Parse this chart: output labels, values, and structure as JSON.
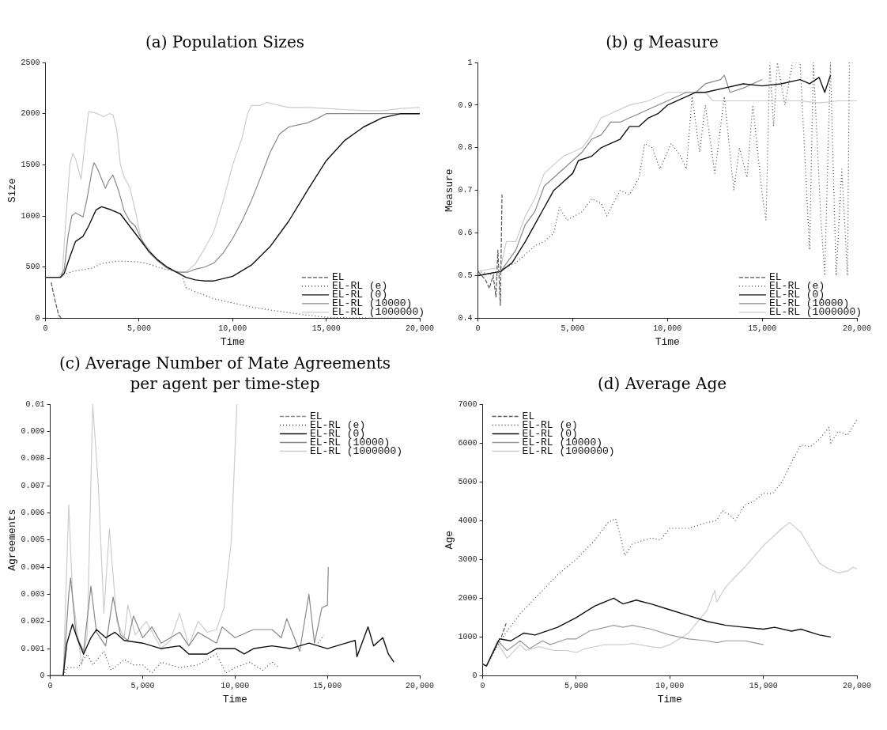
{
  "chart_data": [
    {
      "type": "line",
      "title": "(a) Population Sizes",
      "xlabel": "Time",
      "ylabel": "Size",
      "xlim": [
        0,
        20000
      ],
      "ylim": [
        0,
        2500
      ],
      "xticks": [
        {
          "value": 0,
          "label": "0"
        },
        {
          "value": 5000,
          "label": "5,000"
        },
        {
          "value": 10000,
          "label": "10,000"
        },
        {
          "value": 15000,
          "label": "15,000"
        },
        {
          "value": 20000,
          "label": "20,000"
        }
      ],
      "yticks": [
        0,
        500,
        1000,
        1500,
        2000,
        2500
      ],
      "grid": false,
      "legend": "bottom right",
      "series": [
        {
          "name": "EL",
          "color": "#555555",
          "line_style": "dashed",
          "x": [
            300,
            500,
            700,
            850
          ],
          "values": [
            350,
            180,
            30,
            0
          ]
        },
        {
          "name": "EL-RL (e)",
          "color": "#444444",
          "line_style": "dotted",
          "x": [
            0,
            800,
            1000,
            1500,
            2000,
            2500,
            3000,
            3500,
            4000,
            4500,
            5000,
            5500,
            6000,
            6500,
            7000,
            7300,
            7500,
            8000,
            9000,
            10000,
            11000,
            12000,
            13000,
            14000,
            15000,
            16000,
            18000,
            20000
          ],
          "values": [
            400,
            400,
            430,
            460,
            475,
            490,
            535,
            550,
            560,
            555,
            550,
            530,
            500,
            475,
            460,
            420,
            300,
            260,
            190,
            150,
            110,
            80,
            55,
            30,
            10,
            5,
            2,
            0
          ]
        },
        {
          "name": "EL-RL (0)",
          "color": "#111111",
          "line_style": "solid",
          "x": [
            0,
            800,
            1000,
            1300,
            1600,
            2000,
            2300,
            2700,
            3000,
            3500,
            4000,
            4500,
            5000,
            5500,
            6000,
            6500,
            7000,
            7500,
            8000,
            8500,
            9000,
            10000,
            11000,
            12000,
            13000,
            14000,
            15000,
            16000,
            17000,
            18000,
            19000,
            20000
          ],
          "values": [
            400,
            400,
            440,
            600,
            750,
            800,
            900,
            1060,
            1090,
            1060,
            1020,
            900,
            780,
            660,
            570,
            500,
            450,
            400,
            375,
            365,
            365,
            410,
            520,
            700,
            950,
            1250,
            1540,
            1740,
            1870,
            1960,
            2000,
            2000
          ]
        },
        {
          "name": "EL-RL (10000)",
          "color": "#888888",
          "line_style": "solid",
          "x": [
            0,
            800,
            1000,
            1200,
            1400,
            1600,
            1800,
            2000,
            2200,
            2500,
            2600,
            2800,
            3200,
            3400,
            3600,
            3900,
            4200,
            4500,
            4800,
            5100,
            5500,
            6000,
            6500,
            7000,
            7600,
            8000,
            8500,
            9000,
            9500,
            10000,
            10500,
            11000,
            11500,
            12000,
            12500,
            13000,
            13500,
            14000,
            14500,
            15000,
            20000
          ],
          "values": [
            400,
            400,
            480,
            800,
            1000,
            1030,
            1010,
            990,
            1150,
            1460,
            1520,
            1450,
            1270,
            1350,
            1400,
            1250,
            1050,
            950,
            900,
            780,
            650,
            560,
            490,
            450,
            450,
            480,
            500,
            540,
            640,
            780,
            950,
            1150,
            1380,
            1620,
            1800,
            1870,
            1890,
            1910,
            1950,
            2000,
            2000
          ]
        },
        {
          "name": "EL-RL (1000000)",
          "color": "#cccccc",
          "line_style": "solid",
          "x": [
            0,
            700,
            900,
            1100,
            1300,
            1450,
            1600,
            1900,
            2100,
            2300,
            2600,
            2900,
            3100,
            3400,
            3600,
            3800,
            4000,
            4200,
            4500,
            4800,
            5100,
            5500,
            6000,
            6500,
            7000,
            7500,
            8000,
            8500,
            9000,
            9500,
            10000,
            10500,
            10800,
            11000,
            11500,
            11800,
            12500,
            13000,
            14000,
            15000,
            16000,
            17000,
            18000,
            19000,
            20000
          ],
          "values": [
            400,
            400,
            450,
            1000,
            1500,
            1610,
            1560,
            1360,
            1700,
            2020,
            2010,
            1990,
            1970,
            2000,
            1990,
            1850,
            1500,
            1380,
            1280,
            1050,
            780,
            680,
            560,
            490,
            450,
            450,
            530,
            680,
            850,
            1150,
            1500,
            1760,
            2000,
            2080,
            2080,
            2110,
            2080,
            2060,
            2060,
            2050,
            2040,
            2030,
            2030,
            2050,
            2060
          ]
        }
      ]
    },
    {
      "type": "line",
      "title": "(b) g Measure",
      "xlabel": "Time",
      "ylabel": "Measure",
      "xlim": [
        0,
        20000
      ],
      "ylim": [
        0.4,
        1
      ],
      "xticks": [
        {
          "value": 0,
          "label": "0"
        },
        {
          "value": 5000,
          "label": "5,000"
        },
        {
          "value": 10000,
          "label": "10,000"
        },
        {
          "value": 15000,
          "label": "15,000"
        },
        {
          "value": 20000,
          "label": "20,000"
        }
      ],
      "yticks": [
        0.4,
        0.5,
        0.6,
        0.7,
        0.8,
        0.9,
        1
      ],
      "grid": false,
      "legend": "bottom right",
      "series": [
        {
          "name": "EL",
          "color": "#555555",
          "line_style": "dashed",
          "x": [
            0,
            400,
            600,
            800,
            950,
            1050,
            1180,
            1270
          ],
          "values": [
            0.51,
            0.49,
            0.47,
            0.5,
            0.45,
            0.56,
            0.43,
            0.69
          ]
        },
        {
          "name": "EL-RL (e)",
          "color": "#444444",
          "line_style": "dotted",
          "x": [
            0,
            1000,
            1500,
            2000,
            2500,
            3000,
            3500,
            4000,
            4300,
            4700,
            5500,
            6000,
            6500,
            6800,
            7500,
            8000,
            8500,
            8800,
            9200,
            9600,
            10200,
            10700,
            11000,
            11300,
            11700,
            12000,
            12500,
            13000,
            13500,
            13800,
            14200,
            14500,
            15000,
            15200,
            15400,
            15600,
            15800,
            16200,
            16600,
            17000,
            17500,
            17700,
            18100,
            18300,
            18600,
            18900,
            19200,
            19500,
            19600,
            19900
          ],
          "values": [
            0.51,
            0.5,
            0.52,
            0.53,
            0.55,
            0.57,
            0.58,
            0.6,
            0.66,
            0.63,
            0.65,
            0.68,
            0.67,
            0.64,
            0.7,
            0.69,
            0.73,
            0.81,
            0.8,
            0.75,
            0.81,
            0.78,
            0.75,
            0.92,
            0.79,
            0.9,
            0.74,
            0.92,
            0.7,
            0.8,
            0.73,
            0.9,
            0.69,
            0.63,
            1,
            0.85,
            1,
            0.9,
            1,
            1,
            0.56,
            1,
            0.63,
            0.5,
            1,
            0.5,
            0.75,
            0.5,
            1,
            1
          ]
        },
        {
          "name": "EL-RL (0)",
          "color": "#111111",
          "line_style": "solid",
          "x": [
            0,
            1200,
            1800,
            2500,
            3000,
            3500,
            4000,
            4500,
            5000,
            5300,
            6000,
            6500,
            7000,
            7500,
            8000,
            8500,
            9000,
            9500,
            10000,
            11000,
            11500,
            12000,
            13000,
            14000,
            15000,
            16000,
            17000,
            17500,
            18000,
            18300,
            18600
          ],
          "values": [
            0.5,
            0.51,
            0.53,
            0.58,
            0.62,
            0.66,
            0.7,
            0.72,
            0.74,
            0.77,
            0.78,
            0.8,
            0.81,
            0.82,
            0.85,
            0.85,
            0.87,
            0.88,
            0.9,
            0.92,
            0.93,
            0.93,
            0.94,
            0.95,
            0.945,
            0.95,
            0.96,
            0.95,
            0.965,
            0.93,
            0.97
          ]
        },
        {
          "name": "EL-RL (10000)",
          "color": "#888888",
          "line_style": "solid",
          "x": [
            0,
            1200,
            2000,
            2500,
            3000,
            3500,
            4000,
            4500,
            5000,
            5500,
            6000,
            6500,
            7000,
            7500,
            8000,
            8500,
            9000,
            10000,
            11000,
            11500,
            12000,
            12800,
            13000,
            13300,
            14000,
            14500,
            15000
          ],
          "values": [
            0.5,
            0.51,
            0.56,
            0.62,
            0.65,
            0.71,
            0.73,
            0.75,
            0.77,
            0.79,
            0.82,
            0.83,
            0.86,
            0.86,
            0.87,
            0.88,
            0.89,
            0.91,
            0.93,
            0.93,
            0.95,
            0.96,
            0.97,
            0.93,
            0.94,
            0.95,
            0.96
          ]
        },
        {
          "name": "EL-RL (1000000)",
          "color": "#cccccc",
          "line_style": "solid",
          "x": [
            0,
            1200,
            1500,
            2000,
            2500,
            3000,
            3500,
            4000,
            4500,
            5000,
            5500,
            6000,
            6500,
            7000,
            7500,
            8000,
            9000,
            10000,
            11000,
            12000,
            12400,
            13000,
            14000,
            15000,
            16000,
            17000,
            18000,
            19000,
            20000
          ],
          "values": [
            0.51,
            0.52,
            0.58,
            0.58,
            0.64,
            0.68,
            0.74,
            0.76,
            0.78,
            0.79,
            0.8,
            0.83,
            0.87,
            0.88,
            0.89,
            0.9,
            0.91,
            0.93,
            0.93,
            0.93,
            0.91,
            0.91,
            0.91,
            0.91,
            0.91,
            0.91,
            0.905,
            0.91,
            0.91
          ]
        }
      ]
    },
    {
      "type": "line",
      "title": "(c) Average Number of Mate Agreements per agent per time-step",
      "xlabel": "Time",
      "ylabel": "Agreements",
      "xlim": [
        0,
        20000
      ],
      "ylim": [
        0,
        0.01
      ],
      "xticks": [
        {
          "value": 0,
          "label": "0"
        },
        {
          "value": 5000,
          "label": "5,000"
        },
        {
          "value": 10000,
          "label": "10,000"
        },
        {
          "value": 15000,
          "label": "15,000"
        },
        {
          "value": 20000,
          "label": "20,000"
        }
      ],
      "yticks": [
        0,
        0.001,
        0.002,
        0.003,
        0.004,
        0.005,
        0.006,
        0.007,
        0.008,
        0.009,
        0.01
      ],
      "grid": false,
      "legend": "top right",
      "series": [
        {
          "name": "EL",
          "color": "#888888",
          "line_style": "dashed"
        },
        {
          "name": "EL-RL (e)",
          "color": "#444444",
          "line_style": "dotted",
          "x": [
            700,
            900,
            1500,
            2000,
            2300,
            2900,
            3300,
            4000,
            4500,
            5000,
            5500,
            6000,
            7000,
            8000,
            9000,
            9500,
            10000,
            10800,
            11500,
            12000,
            12400,
            13000,
            14500,
            14800
          ],
          "values": [
            0,
            0.0003,
            0.0003,
            0.0008,
            0.0004,
            0.0009,
            0.0002,
            0.0006,
            0.0004,
            0.0004,
            0.0001,
            0.0005,
            0.0003,
            0.0004,
            0.0008,
            0.0001,
            0.0003,
            0.0005,
            0.0002,
            0.0005,
            0.0003,
            null,
            0.0012,
            0.0015
          ]
        },
        {
          "name": "EL-RL (0)",
          "color": "#111111",
          "line_style": "solid",
          "x": [
            0,
            700,
            900,
            1200,
            1500,
            1800,
            2200,
            2500,
            3000,
            3500,
            4000,
            5000,
            5500,
            6000,
            7000,
            7500,
            8500,
            9000,
            10000,
            10500,
            11000,
            12000,
            13000,
            14000,
            15000,
            16000,
            16500,
            16600,
            17200,
            17500,
            18000,
            18300,
            18600
          ],
          "values": [
            0,
            0,
            0.0012,
            0.0019,
            0.0013,
            0.0008,
            0.0014,
            0.0017,
            0.0014,
            0.0016,
            0.0013,
            0.0012,
            0.0011,
            0.001,
            0.0011,
            0.0008,
            0.0008,
            0.001,
            0.001,
            0.0008,
            0.001,
            0.0011,
            0.001,
            0.0012,
            0.001,
            0.0012,
            0.0013,
            0.0007,
            0.0018,
            0.0011,
            0.0014,
            0.0008,
            0.0005
          ]
        },
        {
          "name": "EL-RL (10000)",
          "color": "#888888",
          "line_style": "solid",
          "x": [
            0,
            700,
            1000,
            1100,
            1400,
            1800,
            2200,
            2500,
            3000,
            3400,
            3800,
            4200,
            4500,
            5000,
            5500,
            6000,
            7000,
            7500,
            8000,
            9000,
            9300,
            10000,
            11000,
            12000,
            12500,
            12800,
            13500,
            14000,
            14300,
            14700,
            15000,
            15050
          ],
          "values": [
            0,
            0,
            0.003,
            0.0036,
            0.0015,
            0.0009,
            0.0033,
            0.0016,
            0.0011,
            0.0029,
            0.0015,
            0.0013,
            0.0022,
            0.0014,
            0.0018,
            0.0012,
            0.0016,
            0.0011,
            0.0016,
            0.0012,
            0.0018,
            0.0014,
            0.0017,
            0.0017,
            0.0014,
            0.0021,
            0.0009,
            0.003,
            0.0012,
            0.0025,
            0.0026,
            0.004
          ]
        },
        {
          "name": "EL-RL (1000000)",
          "color": "#cccccc",
          "line_style": "solid",
          "x": [
            0,
            700,
            1000,
            1200,
            1700,
            2000,
            2300,
            2600,
            2900,
            3200,
            3600,
            4000,
            4200,
            4600,
            5200,
            6000,
            6500,
            7000,
            7500,
            8000,
            8500,
            9000,
            9400,
            9800,
            10100
          ],
          "values": [
            0,
            0,
            0.0063,
            0.003,
            0.0004,
            0.0015,
            0.01,
            0.007,
            0.0023,
            0.0054,
            0.002,
            0.0014,
            0.0026,
            0.0015,
            0.002,
            0.001,
            0.0013,
            0.0023,
            0.0011,
            0.002,
            0.0016,
            0.0017,
            0.0025,
            0.005,
            0.01
          ]
        }
      ]
    },
    {
      "type": "line",
      "title": "(d) Average Age",
      "xlabel": "Time",
      "ylabel": "Age",
      "xlim": [
        0,
        20000
      ],
      "ylim": [
        0,
        7000
      ],
      "xticks": [
        {
          "value": 0,
          "label": "0"
        },
        {
          "value": 5000,
          "label": "5,000"
        },
        {
          "value": 10000,
          "label": "10,000"
        },
        {
          "value": 15000,
          "label": "15,000"
        },
        {
          "value": 20000,
          "label": "20,000"
        }
      ],
      "yticks": [
        0,
        1000,
        2000,
        3000,
        4000,
        5000,
        6000,
        7000
      ],
      "grid": false,
      "legend": "top left",
      "series": [
        {
          "name": "EL",
          "color": "#555555",
          "line_style": "dashed",
          "x": [
            1000,
            1250
          ],
          "values": [
            1000,
            1350
          ]
        },
        {
          "name": "EL-RL (e)",
          "color": "#444444",
          "line_style": "dotted",
          "x": [
            0,
            200,
            1000,
            2000,
            3000,
            4000,
            5000,
            6000,
            6700,
            7100,
            7300,
            7600,
            8000,
            9000,
            9500,
            10000,
            11000,
            12000,
            12500,
            12800,
            13200,
            13500,
            14000,
            14500,
            15000,
            15500,
            16000,
            16500,
            17000,
            17500,
            18000,
            18500,
            18600,
            19000,
            19500,
            20000
          ],
          "values": [
            300,
            250,
            950,
            1600,
            2100,
            2600,
            3000,
            3500,
            3950,
            4050,
            3700,
            3100,
            3400,
            3550,
            3500,
            3800,
            3800,
            3950,
            4000,
            4250,
            4150,
            4000,
            4400,
            4500,
            4700,
            4700,
            5000,
            5500,
            5950,
            5900,
            6100,
            6400,
            6000,
            6300,
            6200,
            6600
          ]
        },
        {
          "name": "EL-RL (0)",
          "color": "#111111",
          "line_style": "solid",
          "x": [
            0,
            200,
            900,
            1500,
            2200,
            2800,
            4000,
            5000,
            5500,
            6000,
            7000,
            7500,
            8200,
            9000,
            10000,
            11000,
            12000,
            13000,
            14000,
            15000,
            15600,
            16500,
            17000,
            18000,
            18600
          ],
          "values": [
            300,
            250,
            950,
            900,
            1100,
            1050,
            1250,
            1500,
            1650,
            1800,
            2000,
            1850,
            1950,
            1850,
            1700,
            1550,
            1400,
            1300,
            1250,
            1200,
            1250,
            1150,
            1200,
            1050,
            1000
          ]
        },
        {
          "name": "EL-RL (10000)",
          "color": "#999999",
          "line_style": "solid",
          "x": [
            0,
            200,
            800,
            1300,
            2000,
            2500,
            3200,
            3600,
            4500,
            5000,
            5700,
            7000,
            7500,
            8000,
            9000,
            10000,
            11000,
            12000,
            12500,
            13000,
            14000,
            14500,
            15000
          ],
          "values": [
            300,
            250,
            900,
            650,
            900,
            700,
            900,
            800,
            950,
            950,
            1150,
            1300,
            1250,
            1300,
            1200,
            1050,
            950,
            900,
            850,
            900,
            900,
            850,
            800
          ]
        },
        {
          "name": "EL-RL (1000000)",
          "color": "#cccccc",
          "line_style": "solid",
          "x": [
            0,
            200,
            800,
            1300,
            2000,
            2300,
            3000,
            3800,
            4500,
            5000,
            5500,
            6500,
            7500,
            8000,
            9000,
            9500,
            10000,
            11000,
            12000,
            12400,
            12500,
            13000,
            14000,
            15000,
            16000,
            16400,
            17000,
            18000,
            18500,
            19000,
            19500,
            19800,
            20000
          ],
          "values": [
            300,
            250,
            850,
            450,
            800,
            650,
            750,
            650,
            650,
            600,
            700,
            800,
            800,
            830,
            750,
            720,
            800,
            1100,
            1700,
            2200,
            1900,
            2300,
            2800,
            3350,
            3800,
            3950,
            3700,
            2900,
            2750,
            2650,
            2700,
            2800,
            2750
          ]
        }
      ]
    }
  ]
}
